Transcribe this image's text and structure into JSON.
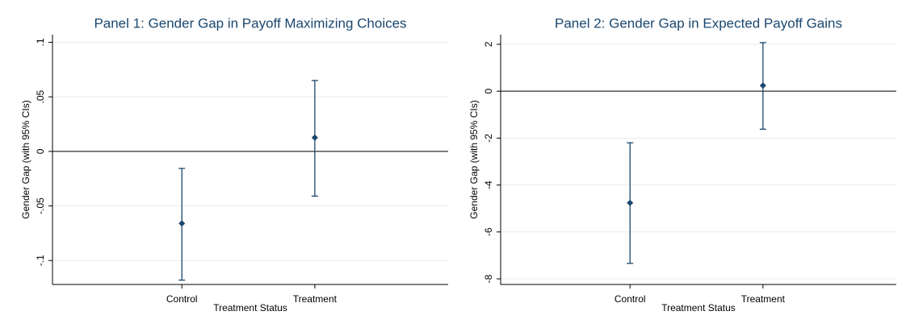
{
  "chart_data": [
    {
      "type": "errorbar",
      "title": "Panel 1: Gender Gap in Payoff Maximizing Choices",
      "x_label": "Treatment Status",
      "y_label": "Gender Gap (with 95% CIs)",
      "categories": [
        "Control",
        "Treatment"
      ],
      "values": [
        -0.066,
        0.0126
      ],
      "ci_low": [
        -0.118,
        -0.041
      ],
      "ci_high": [
        -0.0156,
        0.065
      ],
      "color": "#1a476f",
      "ylim": [
        -0.122,
        0.107
      ],
      "yticks": [
        {
          "value": -0.1,
          "label": "-.1"
        },
        {
          "value": -0.05,
          "label": "-.05"
        },
        0,
        {
          "value": 0.05,
          "label": ".05"
        },
        {
          "value": 0.1,
          "label": ".1"
        }
      ],
      "grid": true,
      "reference_line": 0
    },
    {
      "type": "errorbar",
      "title": "Panel 2: Gender Gap in Expected Payoff Gains",
      "x_label": "Treatment Status",
      "y_label": "Gender Gap (with 95% CIs)",
      "categories": [
        "Control",
        "Treatment"
      ],
      "values": [
        -4.76,
        0.24
      ],
      "ci_low": [
        -7.34,
        -1.62
      ],
      "ci_high": [
        -2.2,
        2.07
      ],
      "color": "#1a476f",
      "ylim": [
        -8.24,
        2.41
      ],
      "yticks": [
        -8,
        -6,
        -4,
        -2,
        0,
        2
      ],
      "grid": true,
      "reference_line": 0
    }
  ]
}
